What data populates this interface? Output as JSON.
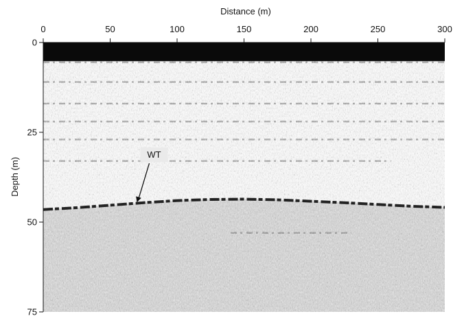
{
  "chart_data": {
    "type": "heatmap",
    "title": "",
    "xlabel": "Distance (m)",
    "ylabel": "Depth (m)",
    "xlim": [
      0,
      300
    ],
    "ylim": [
      0,
      75
    ],
    "y_inverted": true,
    "x_axis_position": "top",
    "x_ticks": [
      0,
      50,
      100,
      150,
      200,
      250,
      300
    ],
    "y_ticks": [
      0,
      25,
      50,
      75
    ],
    "colormap": "grayscale",
    "annotations": [
      {
        "text": "WT",
        "x": 70,
        "y": 44.5
      }
    ],
    "water_table_surface": {
      "x": [
        0,
        25,
        50,
        75,
        100,
        125,
        150,
        175,
        200,
        225,
        250,
        275,
        300
      ],
      "depth": [
        46.5,
        46.0,
        45.3,
        44.6,
        44.0,
        43.7,
        43.6,
        43.8,
        44.2,
        44.6,
        45.1,
        45.6,
        45.9
      ]
    },
    "reflectors": [
      {
        "x0": 0,
        "x1": 300,
        "depth": 5.5
      },
      {
        "x0": 0,
        "x1": 300,
        "depth": 11
      },
      {
        "x0": 0,
        "x1": 300,
        "depth": 17
      },
      {
        "x0": 0,
        "x1": 300,
        "depth": 22
      },
      {
        "x0": 0,
        "x1": 300,
        "depth": 27
      },
      {
        "x0": 0,
        "x1": 260,
        "depth": 33
      },
      {
        "x0": 140,
        "x1": 230,
        "depth": 53
      }
    ]
  }
}
